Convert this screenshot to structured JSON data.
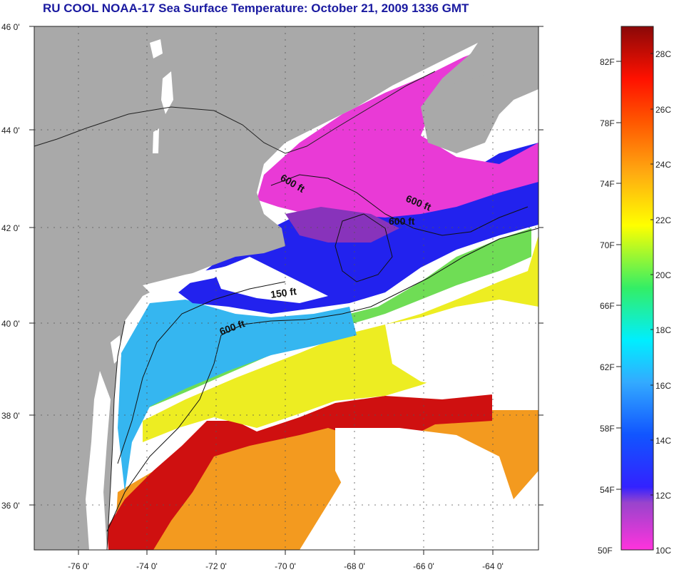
{
  "title": "RU COOL  NOAA-17  Sea Surface Temperature:  October 21, 2009 1336 GMT",
  "map": {
    "lon_ticks": [
      "-76 0'",
      "-74 0'",
      "-72 0'",
      "-70 0'",
      "-68 0'",
      "-66 0'",
      "-64 0'"
    ],
    "lat_ticks": [
      "46 0'",
      "44 0'",
      "42 0'",
      "40 0'",
      "38 0'",
      "36 0'"
    ],
    "contour_labels": [
      "600 ft",
      "600 ft",
      "600 ft",
      "150 ft",
      "600 ft"
    ],
    "colors": {
      "land": "#a9a9a9",
      "cloud": "#ffffff"
    }
  },
  "colorbar": {
    "fahrenheit": [
      "82F",
      "78F",
      "74F",
      "70F",
      "66F",
      "62F",
      "58F",
      "54F",
      "50F"
    ],
    "celsius": [
      "28C",
      "26C",
      "24C",
      "22C",
      "20C",
      "18C",
      "16C",
      "14C",
      "12C",
      "10C"
    ]
  }
}
